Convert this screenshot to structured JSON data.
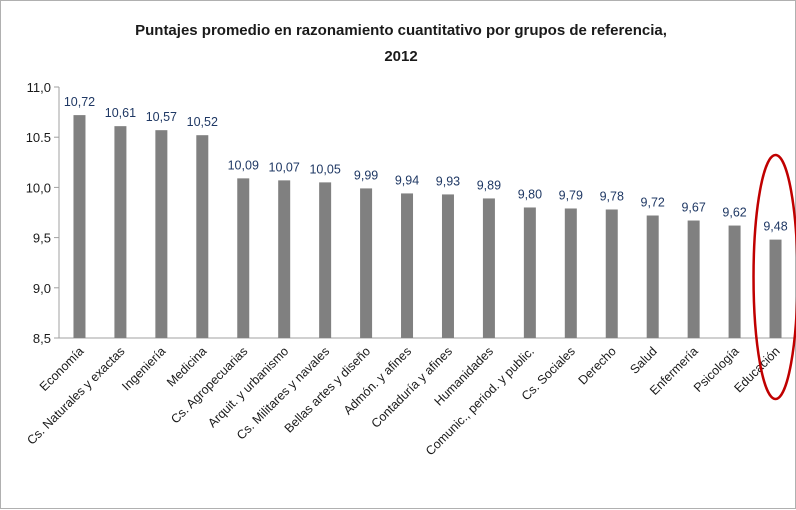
{
  "chart_data": {
    "type": "bar",
    "title": "Puntajes promedio en razonamiento cuantitativo por grupos de referencia,",
    "title_line2": "2012",
    "xlabel": "",
    "ylabel": "",
    "ylim": [
      8.5,
      11.0
    ],
    "yticks": [
      "8,5",
      "9,0",
      "9,5",
      "10,0",
      "10.5",
      "11,0"
    ],
    "grid": false,
    "bar_color": "#808080",
    "highlight_color": "#c00000",
    "highlight_category": "Educación",
    "categories": [
      "Economía",
      "Cs. Naturales y exactas",
      "Ingeniería",
      "Medicina",
      "Cs. Agropecuarias",
      "Arquit. y urbanismo",
      "Cs. Militares y navales",
      "Bellas artes y diseño",
      "Admón. y afines",
      "Contaduría y afines",
      "Humanidades",
      "Comunic., period. y public.",
      "Cs. Sociales",
      "Derecho",
      "Salud",
      "Enfermería",
      "Psicología",
      "Educación"
    ],
    "values": [
      10.72,
      10.61,
      10.57,
      10.52,
      10.09,
      10.07,
      10.05,
      9.99,
      9.94,
      9.93,
      9.89,
      9.8,
      9.79,
      9.78,
      9.72,
      9.67,
      9.62,
      9.48
    ],
    "value_labels": [
      "10,72",
      "10,61",
      "10,57",
      "10,52",
      "10,09",
      "10,07",
      "10,05",
      "9,99",
      "9,94",
      "9,93",
      "9,89",
      "9,80",
      "9,79",
      "9,78",
      "9,72",
      "9,67",
      "9,62",
      "9,48"
    ]
  }
}
